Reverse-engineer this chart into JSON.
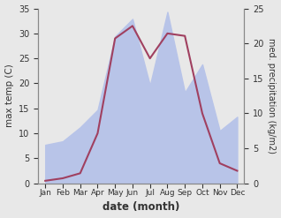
{
  "months": [
    "Jan",
    "Feb",
    "Mar",
    "Apr",
    "May",
    "Jun",
    "Jul",
    "Aug",
    "Sep",
    "Oct",
    "Nov",
    "Dec"
  ],
  "temperature": [
    0.5,
    1.0,
    2.0,
    10.0,
    29.0,
    31.5,
    25.0,
    30.0,
    29.5,
    14.0,
    4.0,
    2.5
  ],
  "precipitation": [
    5.5,
    6.0,
    8.0,
    10.5,
    21.0,
    23.5,
    14.0,
    24.5,
    13.0,
    17.0,
    7.5,
    9.5
  ],
  "temp_color": "#a04060",
  "precip_fill_color": "#b8c4e8",
  "ylabel_left": "max temp (C)",
  "ylabel_right": "med. precipitation (kg/m2)",
  "xlabel": "date (month)",
  "ylim_left": [
    0,
    35
  ],
  "ylim_right": [
    0,
    25
  ],
  "yticks_left": [
    0,
    5,
    10,
    15,
    20,
    25,
    30,
    35
  ],
  "yticks_right": [
    0,
    5,
    10,
    15,
    20,
    25
  ],
  "bg_color": "#e8e8e8"
}
